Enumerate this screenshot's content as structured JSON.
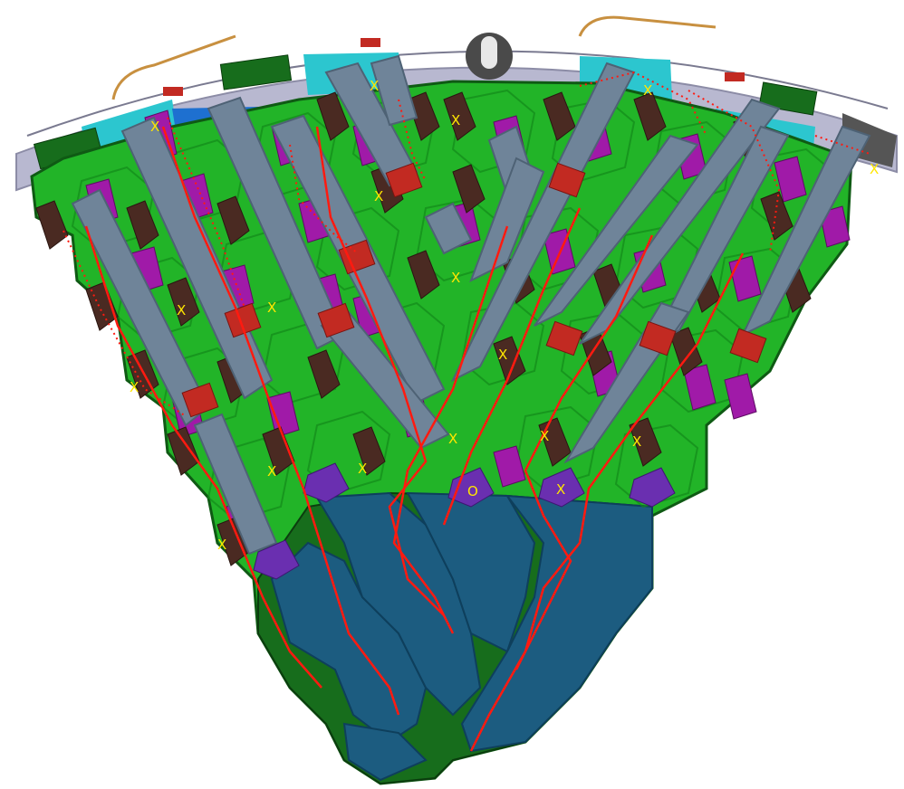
{
  "diagram": {
    "colors": {
      "board": "#22b428",
      "board_dark": "#176d1c",
      "board_edge": "#0f5a14",
      "module": "#6f8499",
      "module_edge": "#4e6275",
      "chip_magenta": "#a01aa8",
      "chip_brown": "#4a2a22",
      "connector_red": "#c22a22",
      "bga_purple": "#6a2fb0",
      "cooling": "#1c5c80",
      "cooling_edge": "#0e3f5c",
      "frame": "#b8b8d0",
      "cyan": "#2cc6cf",
      "blue_panel": "#1e70d0",
      "trace": "#ff1a10",
      "marker": "#ffe600"
    },
    "markers": [
      {
        "label": "X"
      },
      {
        "label": "X"
      },
      {
        "label": "X"
      },
      {
        "label": "X"
      },
      {
        "label": "X"
      },
      {
        "label": "X"
      },
      {
        "label": "X"
      },
      {
        "label": "X"
      },
      {
        "label": "X"
      },
      {
        "label": "X"
      },
      {
        "label": "X"
      },
      {
        "label": "X"
      },
      {
        "label": "X"
      },
      {
        "label": "X"
      },
      {
        "label": "X"
      },
      {
        "label": "X"
      },
      {
        "label": "X"
      },
      {
        "label": "X"
      },
      {
        "label": "X"
      },
      {
        "label": "O"
      },
      {
        "label": "X"
      }
    ]
  }
}
